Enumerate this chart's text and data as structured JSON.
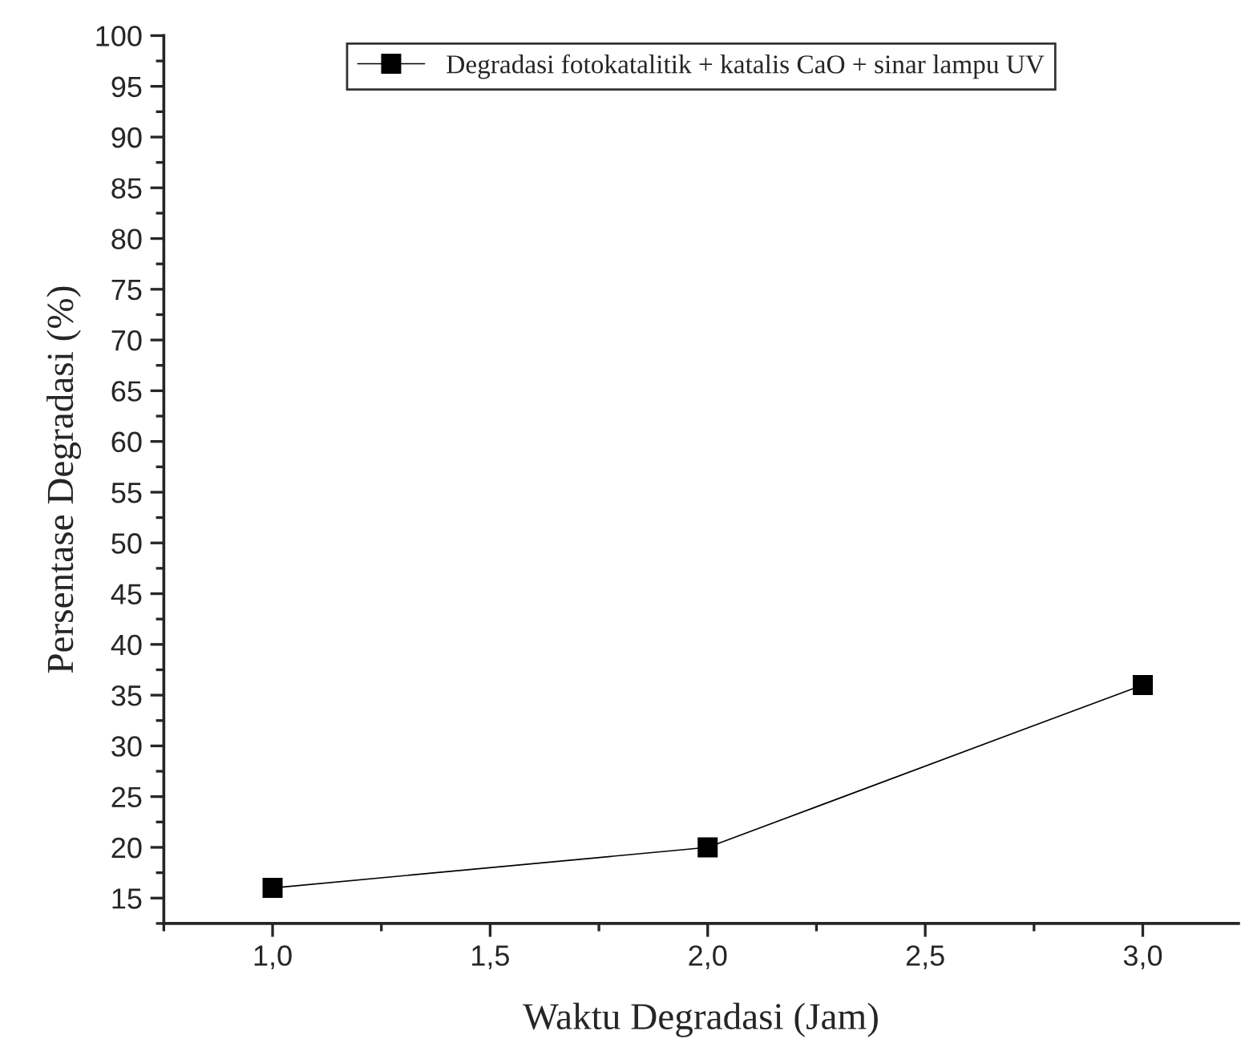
{
  "chart_data": {
    "type": "line",
    "xlabel": "Waktu Degradasi (Jam)",
    "ylabel": "Persentase Degradasi (%)",
    "x": [
      1.0,
      2.0,
      3.0
    ],
    "series": [
      {
        "name": "Degradasi fotokatalitik + katalis CaO + sinar lampu UV",
        "color": "#000000",
        "values": [
          16,
          20,
          36
        ]
      }
    ],
    "xlim": [
      0.75,
      3.22
    ],
    "xticks": [
      {
        "value": 1.0,
        "label": "1,0"
      },
      {
        "value": 1.5,
        "label": "1,5"
      },
      {
        "value": 2.0,
        "label": "2,0"
      },
      {
        "value": 2.5,
        "label": "2,5"
      },
      {
        "value": 3.0,
        "label": "3,0"
      }
    ],
    "ylim": [
      12.5,
      100
    ],
    "yticks": [
      15,
      20,
      25,
      30,
      35,
      40,
      45,
      50,
      55,
      60,
      65,
      70,
      75,
      80,
      85,
      90,
      95,
      100
    ],
    "marker": "square",
    "line_style": "solid",
    "legend": "top",
    "grid": false
  }
}
